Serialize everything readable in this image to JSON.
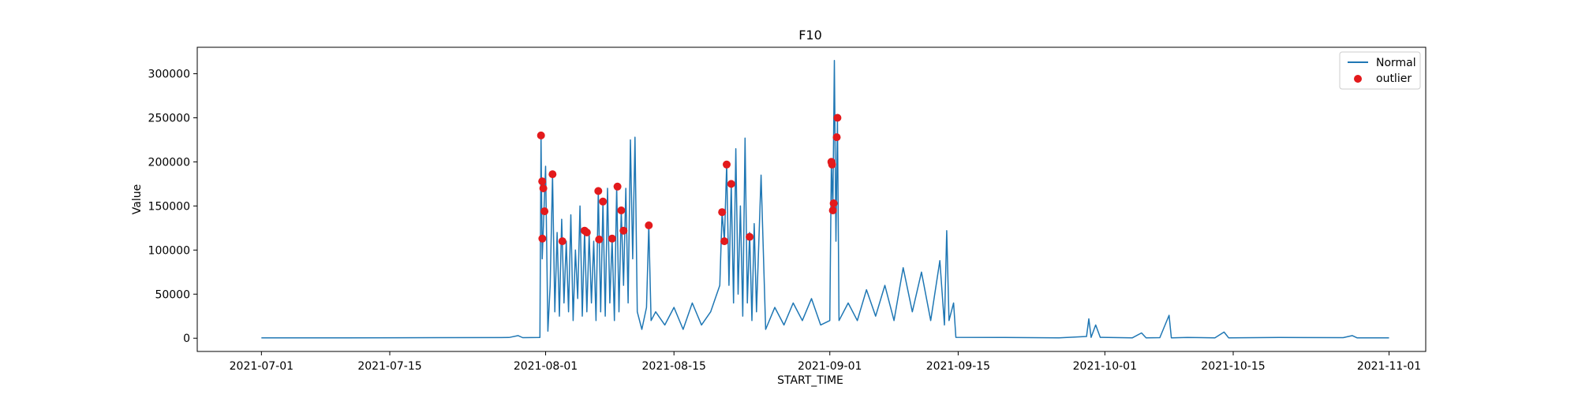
{
  "chart_data": {
    "type": "line",
    "title": "F10",
    "xlabel": "START_TIME",
    "ylabel": "Value",
    "x_ticks": [
      "2021-07-01",
      "2021-07-15",
      "2021-08-01",
      "2021-08-15",
      "2021-09-01",
      "2021-09-15",
      "2021-10-01",
      "2021-10-15",
      "2021-11-01"
    ],
    "y_ticks": [
      0,
      50000,
      100000,
      150000,
      200000,
      250000,
      300000
    ],
    "y_tick_labels": [
      "0",
      "50000",
      "100000",
      "150000",
      "200000",
      "250000",
      "300000"
    ],
    "xlim": [
      "2021-06-24",
      "2021-11-05"
    ],
    "ylim": [
      -15000,
      330000
    ],
    "grid": false,
    "legend": {
      "placement": "top-right",
      "entries": [
        "Normal",
        "outlier"
      ]
    },
    "colors": {
      "normal": "#1f77b4",
      "outlier": "#e31a1c"
    },
    "series": [
      {
        "name": "Normal",
        "style": "line",
        "points": [
          [
            "2021-07-01",
            500
          ],
          [
            "2021-07-10",
            500
          ],
          [
            "2021-07-20",
            600
          ],
          [
            "2021-07-28",
            800
          ],
          [
            "2021-07-29",
            3000
          ],
          [
            "2021-07-29T12:00",
            600
          ],
          [
            "2021-07-31T09:00",
            800
          ],
          [
            "2021-07-31T12:00",
            230000
          ],
          [
            "2021-07-31T15:00",
            90000
          ],
          [
            "2021-08-01",
            195000
          ],
          [
            "2021-08-01T06:00",
            8000
          ],
          [
            "2021-08-01T12:00",
            60000
          ],
          [
            "2021-08-01T18:00",
            185000
          ],
          [
            "2021-08-02",
            30000
          ],
          [
            "2021-08-02T06:00",
            120000
          ],
          [
            "2021-08-02T12:00",
            25000
          ],
          [
            "2021-08-02T18:00",
            135000
          ],
          [
            "2021-08-03",
            40000
          ],
          [
            "2021-08-03T06:00",
            110000
          ],
          [
            "2021-08-03T12:00",
            30000
          ],
          [
            "2021-08-03T18:00",
            140000
          ],
          [
            "2021-08-04",
            20000
          ],
          [
            "2021-08-04T06:00",
            100000
          ],
          [
            "2021-08-04T12:00",
            45000
          ],
          [
            "2021-08-04T18:00",
            150000
          ],
          [
            "2021-08-05",
            25000
          ],
          [
            "2021-08-05T06:00",
            122000
          ],
          [
            "2021-08-05T12:00",
            30000
          ],
          [
            "2021-08-05T18:00",
            118000
          ],
          [
            "2021-08-06",
            40000
          ],
          [
            "2021-08-06T06:00",
            110000
          ],
          [
            "2021-08-06T12:00",
            20000
          ],
          [
            "2021-08-06T18:00",
            167000
          ],
          [
            "2021-08-07",
            30000
          ],
          [
            "2021-08-07T06:00",
            155000
          ],
          [
            "2021-08-07T12:00",
            25000
          ],
          [
            "2021-08-07T18:00",
            170000
          ],
          [
            "2021-08-08",
            40000
          ],
          [
            "2021-08-08T06:00",
            113000
          ],
          [
            "2021-08-08T12:00",
            20000
          ],
          [
            "2021-08-08T18:00",
            172000
          ],
          [
            "2021-08-09",
            30000
          ],
          [
            "2021-08-09T06:00",
            145000
          ],
          [
            "2021-08-09T12:00",
            60000
          ],
          [
            "2021-08-09T18:00",
            170000
          ],
          [
            "2021-08-10",
            40000
          ],
          [
            "2021-08-10T06:00",
            225000
          ],
          [
            "2021-08-10T12:00",
            90000
          ],
          [
            "2021-08-10T18:00",
            228000
          ],
          [
            "2021-08-11",
            30000
          ],
          [
            "2021-08-11T12:00",
            10000
          ],
          [
            "2021-08-12",
            35000
          ],
          [
            "2021-08-12T06:00",
            128000
          ],
          [
            "2021-08-12T12:00",
            20000
          ],
          [
            "2021-08-13",
            30000
          ],
          [
            "2021-08-14",
            15000
          ],
          [
            "2021-08-15",
            35000
          ],
          [
            "2021-08-16",
            10000
          ],
          [
            "2021-08-17",
            40000
          ],
          [
            "2021-08-18",
            15000
          ],
          [
            "2021-08-19",
            30000
          ],
          [
            "2021-08-20",
            60000
          ],
          [
            "2021-08-20T06:00",
            143000
          ],
          [
            "2021-08-20T12:00",
            110000
          ],
          [
            "2021-08-20T18:00",
            197000
          ],
          [
            "2021-08-21",
            60000
          ],
          [
            "2021-08-21T06:00",
            175000
          ],
          [
            "2021-08-21T12:00",
            40000
          ],
          [
            "2021-08-21T18:00",
            215000
          ],
          [
            "2021-08-22",
            50000
          ],
          [
            "2021-08-22T06:00",
            150000
          ],
          [
            "2021-08-22T12:00",
            25000
          ],
          [
            "2021-08-22T18:00",
            227000
          ],
          [
            "2021-08-23",
            40000
          ],
          [
            "2021-08-23T06:00",
            120000
          ],
          [
            "2021-08-23T12:00",
            20000
          ],
          [
            "2021-08-23T18:00",
            130000
          ],
          [
            "2021-08-24",
            30000
          ],
          [
            "2021-08-24T12:00",
            185000
          ],
          [
            "2021-08-25",
            10000
          ],
          [
            "2021-08-26",
            35000
          ],
          [
            "2021-08-27",
            15000
          ],
          [
            "2021-08-28",
            40000
          ],
          [
            "2021-08-29",
            20000
          ],
          [
            "2021-08-30",
            45000
          ],
          [
            "2021-08-31",
            15000
          ],
          [
            "2021-09-01",
            20000
          ],
          [
            "2021-09-01T04:00",
            200000
          ],
          [
            "2021-09-01T08:00",
            145000
          ],
          [
            "2021-09-01T12:00",
            315000
          ],
          [
            "2021-09-01T16:00",
            110000
          ],
          [
            "2021-09-01T20:00",
            250000
          ],
          [
            "2021-09-02",
            20000
          ],
          [
            "2021-09-03",
            40000
          ],
          [
            "2021-09-04",
            20000
          ],
          [
            "2021-09-05",
            55000
          ],
          [
            "2021-09-06",
            25000
          ],
          [
            "2021-09-07",
            60000
          ],
          [
            "2021-09-08",
            20000
          ],
          [
            "2021-09-09",
            80000
          ],
          [
            "2021-09-10",
            30000
          ],
          [
            "2021-09-11",
            75000
          ],
          [
            "2021-09-12",
            20000
          ],
          [
            "2021-09-13",
            88000
          ],
          [
            "2021-09-13T12:00",
            15000
          ],
          [
            "2021-09-13T18:00",
            122000
          ],
          [
            "2021-09-14",
            20000
          ],
          [
            "2021-09-14T12:00",
            40000
          ],
          [
            "2021-09-14T18:00",
            1000
          ],
          [
            "2021-09-20",
            800
          ],
          [
            "2021-09-26",
            500
          ],
          [
            "2021-09-29",
            2000
          ],
          [
            "2021-09-29T06:00",
            22000
          ],
          [
            "2021-09-29T12:00",
            1000
          ],
          [
            "2021-09-30",
            15000
          ],
          [
            "2021-09-30T12:00",
            1000
          ],
          [
            "2021-10-04",
            500
          ],
          [
            "2021-10-05",
            6000
          ],
          [
            "2021-10-05T12:00",
            500
          ],
          [
            "2021-10-07",
            600
          ],
          [
            "2021-10-08",
            26000
          ],
          [
            "2021-10-08T06:00",
            500
          ],
          [
            "2021-10-10",
            800
          ],
          [
            "2021-10-13",
            500
          ],
          [
            "2021-10-14",
            7000
          ],
          [
            "2021-10-14T12:00",
            500
          ],
          [
            "2021-10-20",
            800
          ],
          [
            "2021-10-27",
            600
          ],
          [
            "2021-10-28",
            3000
          ],
          [
            "2021-10-28T12:00",
            500
          ],
          [
            "2021-11-01",
            500
          ]
        ]
      },
      {
        "name": "outlier",
        "style": "scatter",
        "points": [
          [
            "2021-07-31T12:00",
            230000
          ],
          [
            "2021-07-31T15:00",
            178000
          ],
          [
            "2021-07-31T18:00",
            170000
          ],
          [
            "2021-07-31T21:00",
            144000
          ],
          [
            "2021-07-31T15:30",
            113000
          ],
          [
            "2021-08-01T18:00",
            186000
          ],
          [
            "2021-08-02T20:00",
            110000
          ],
          [
            "2021-08-05T06:00",
            122000
          ],
          [
            "2021-08-05T12:00",
            120000
          ],
          [
            "2021-08-06T18:00",
            167000
          ],
          [
            "2021-08-07T06:00",
            155000
          ],
          [
            "2021-08-06T20:00",
            112000
          ],
          [
            "2021-08-08T06:00",
            113000
          ],
          [
            "2021-08-09T06:00",
            145000
          ],
          [
            "2021-08-08T20:00",
            172000
          ],
          [
            "2021-08-09T12:00",
            122000
          ],
          [
            "2021-08-12T06:00",
            128000
          ],
          [
            "2021-08-20T06:00",
            143000
          ],
          [
            "2021-08-20T12:00",
            110000
          ],
          [
            "2021-08-20T18:00",
            197000
          ],
          [
            "2021-08-21T06:00",
            175000
          ],
          [
            "2021-08-23T06:00",
            115000
          ],
          [
            "2021-09-01T04:00",
            200000
          ],
          [
            "2021-09-01T06:00",
            197000
          ],
          [
            "2021-09-01T08:00",
            145000
          ],
          [
            "2021-09-01T10:00",
            153000
          ],
          [
            "2021-09-01T20:00",
            250000
          ],
          [
            "2021-09-01T18:00",
            228000
          ]
        ]
      }
    ]
  }
}
